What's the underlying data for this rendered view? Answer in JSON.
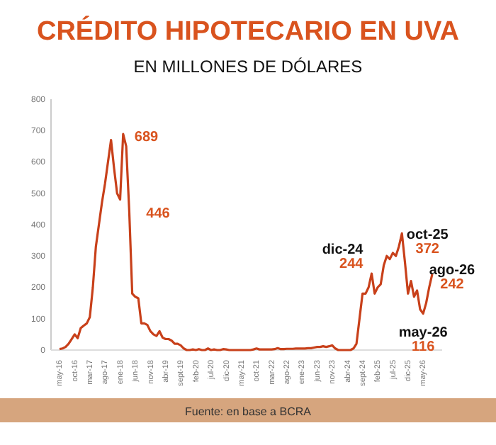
{
  "chart_data": {
    "type": "line",
    "title": "CRÉDITO HIPOTECARIO EN UVA",
    "subtitle": "EN MILLONES DE DÓLARES",
    "categories": [
      "may-16",
      null,
      null,
      null,
      null,
      "oct-16",
      null,
      null,
      null,
      null,
      "mar-17",
      null,
      null,
      null,
      null,
      "ago-17",
      null,
      null,
      null,
      null,
      "ene-18",
      null,
      null,
      null,
      null,
      "jun-18",
      null,
      null,
      null,
      null,
      "nov-18",
      null,
      null,
      null,
      null,
      "abr-19",
      null,
      null,
      null,
      null,
      "sept-19",
      null,
      null,
      null,
      null,
      "feb-20",
      null,
      null,
      null,
      null,
      "jul-20",
      null,
      null,
      null,
      null,
      "dic-20",
      null,
      null,
      null,
      null,
      "may-21",
      null,
      null,
      null,
      null,
      "oct-21",
      null,
      null,
      null,
      null,
      "mar-22",
      null,
      null,
      null,
      null,
      "ago-22",
      null,
      null,
      null,
      null,
      "ene-23",
      null,
      null,
      null,
      null,
      "jun-23",
      null,
      null,
      null,
      null,
      "nov-23",
      null,
      null,
      null,
      null,
      "abr-24",
      null,
      null,
      null,
      null,
      "sept-24",
      null,
      null,
      null,
      null,
      "feb-25",
      null,
      null,
      null,
      null,
      "jul-25",
      null,
      null,
      null,
      null,
      "dic-25",
      null,
      null,
      null,
      null,
      "may-26",
      null,
      null,
      null
    ],
    "series": [
      {
        "color": "#c8401a",
        "values": [
          3,
          5,
          10,
          20,
          35,
          50,
          38,
          70,
          78,
          85,
          105,
          200,
          330,
          400,
          470,
          530,
          600,
          670,
          580,
          500,
          480,
          689,
          650,
          446,
          180,
          170,
          165,
          85,
          85,
          80,
          60,
          50,
          45,
          60,
          40,
          35,
          35,
          30,
          20,
          20,
          15,
          5,
          0,
          0,
          2,
          0,
          3,
          0,
          0,
          5,
          0,
          2,
          0,
          0,
          3,
          2,
          0,
          0,
          0,
          0,
          0,
          0,
          0,
          0,
          2,
          5,
          2,
          2,
          2,
          2,
          2,
          3,
          6,
          3,
          3,
          4,
          4,
          4,
          5,
          5,
          5,
          5,
          6,
          6,
          8,
          10,
          10,
          12,
          10,
          12,
          15,
          5,
          0,
          0,
          0,
          0,
          0,
          5,
          20,
          100,
          180,
          180,
          200,
          244,
          180,
          200,
          210,
          270,
          300,
          290,
          310,
          300,
          330,
          372,
          280,
          180,
          220,
          170,
          190,
          130,
          116,
          150,
          200,
          242
        ],
        "value_labels": [
          null,
          null,
          null,
          null,
          null,
          null,
          null,
          null,
          null,
          null,
          null,
          null,
          null,
          null,
          null,
          null,
          null,
          null,
          null,
          null,
          null,
          "689",
          null,
          "446",
          null,
          null,
          null,
          null,
          null,
          null,
          null,
          null,
          null,
          null,
          null,
          null,
          null,
          null,
          null,
          null,
          null,
          null,
          null,
          null,
          null,
          null,
          null,
          null,
          null,
          null,
          null,
          null,
          null,
          null,
          null,
          null,
          null,
          null,
          null,
          null,
          null,
          null,
          null,
          null,
          null,
          null,
          null,
          null,
          null,
          null,
          null,
          null,
          null,
          null,
          null,
          null,
          null,
          null,
          null,
          null,
          null,
          null,
          null,
          null,
          null,
          null,
          null,
          null,
          null,
          null,
          null,
          null,
          null,
          null,
          null,
          null,
          null,
          null,
          null,
          null,
          null,
          null,
          null,
          "244",
          null,
          null,
          null,
          null,
          null,
          null,
          null,
          null,
          null,
          "372",
          null,
          null,
          null,
          null,
          null,
          null,
          "116",
          null,
          null,
          "242"
        ]
      }
    ],
    "ylim": [
      0,
      800
    ],
    "yticks": [
      0,
      100,
      200,
      300,
      400,
      500,
      600,
      700,
      800
    ],
    "grid": false,
    "marker": "none",
    "line_style": "solid",
    "annotations": [
      "dic-24",
      "oct-25",
      "may-26",
      "ago-26",
      "Fuente: en base a BCRA"
    ]
  }
}
